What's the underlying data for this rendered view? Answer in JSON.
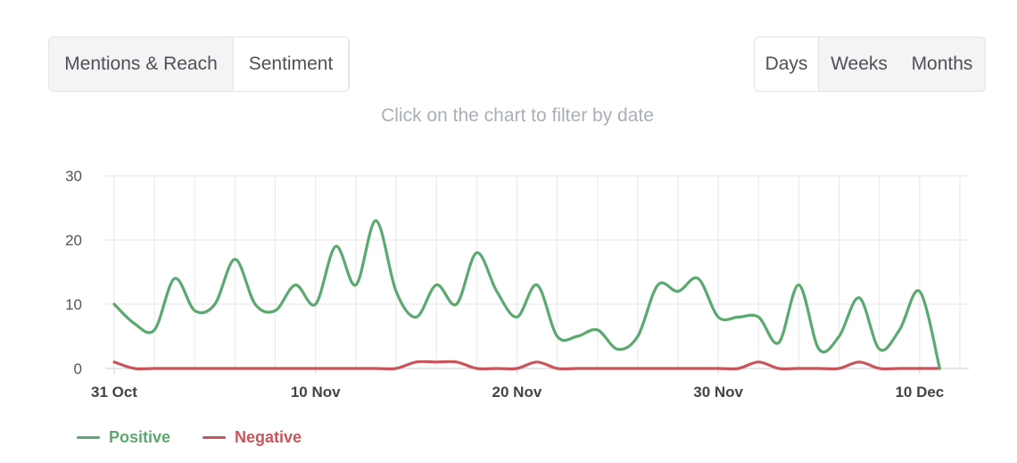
{
  "tabs_left": [
    {
      "label": "Mentions & Reach",
      "active": false
    },
    {
      "label": "Sentiment",
      "active": true
    }
  ],
  "tabs_right": [
    {
      "label": "Days",
      "active": true
    },
    {
      "label": "Weeks",
      "active": false
    },
    {
      "label": "Months",
      "active": false
    }
  ],
  "hint": "Click on the chart to filter by date",
  "colors": {
    "positive": "#5aa96f",
    "negative": "#c9555a",
    "grid": "#e6e6e6",
    "axis_text": "#555555"
  },
  "chart_data": {
    "type": "line",
    "x_start": "2023-10-31",
    "x_end": "2023-12-12",
    "x_tick_labels": [
      "31 Oct",
      "10 Nov",
      "20 Nov",
      "30 Nov",
      "10 Dec"
    ],
    "x_tick_dates": [
      "2023-10-31",
      "2023-11-10",
      "2023-11-20",
      "2023-11-30",
      "2023-12-10"
    ],
    "ylim": [
      0,
      30
    ],
    "y_ticks": [
      0,
      10,
      20,
      30
    ],
    "grid": true,
    "legend_position": "bottom-left",
    "series": [
      {
        "name": "Positive",
        "color": "#5aa96f",
        "values": [
          10,
          7,
          6,
          14,
          9,
          10,
          17,
          10,
          9,
          13,
          10,
          19,
          13,
          23,
          12,
          8,
          13,
          10,
          18,
          12,
          8,
          13,
          5,
          5,
          6,
          3,
          5,
          13,
          12,
          14,
          8,
          8,
          8,
          4,
          13,
          3,
          5,
          11,
          3,
          6,
          12,
          0
        ]
      },
      {
        "name": "Negative",
        "color": "#c9555a",
        "values": [
          1,
          0,
          0,
          0,
          0,
          0,
          0,
          0,
          0,
          0,
          0,
          0,
          0,
          0,
          0,
          1,
          1,
          1,
          0,
          0,
          0,
          1,
          0,
          0,
          0,
          0,
          0,
          0,
          0,
          0,
          0,
          0,
          1,
          0,
          0,
          0,
          0,
          1,
          0,
          0,
          0,
          0
        ]
      }
    ]
  }
}
